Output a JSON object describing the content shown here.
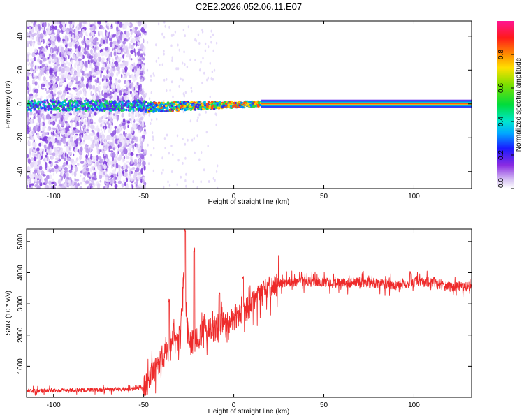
{
  "title": "C2E2.2026.052.06.11.E07",
  "colors": {
    "axis": "#000000",
    "snr_line": "#ee2a2a",
    "background": "#ffffff"
  },
  "chart_data": [
    {
      "type": "heatmap",
      "title": "C2E2.2026.052.06.11.E07",
      "xlabel": "Height of straight line (km)",
      "ylabel": "Frequency (Hz)",
      "xlim": [
        -115,
        132
      ],
      "ylim": [
        -50,
        49
      ],
      "xticks": [
        -100,
        -50,
        0,
        50,
        100
      ],
      "xtick_labels": [
        "-100",
        "-50",
        "0",
        "50",
        "100"
      ],
      "yticks": [
        -40,
        -20,
        0,
        20,
        40
      ],
      "ytick_labels": [
        "-40",
        "-20",
        "0",
        "20",
        "40"
      ],
      "colorbar": {
        "label": "Normalized spectral amplitude",
        "range": [
          0,
          1
        ],
        "ticks": [
          0.0,
          0.2,
          0.4,
          0.6,
          0.8
        ],
        "tick_labels": [
          "0.0",
          "0.2",
          "0.4",
          "0.6",
          "0.8"
        ],
        "colormap": "rainbow (white-violet-blue-cyan-green-yellow-red-magenta)"
      },
      "regions": [
        {
          "x_range": [
            -115,
            -49
          ],
          "description": "broadband scattered low-amplitude energy",
          "amplitude": 0.15
        },
        {
          "x_range": [
            -49,
            15
          ],
          "description": "narrow band near 0 Hz, slightly negative frequency near -40 km",
          "center_freq": -2,
          "amplitude": 0.5
        },
        {
          "x_range": [
            15,
            132
          ],
          "description": "strong narrow line at 0 Hz",
          "center_freq": 0,
          "amplitude": 0.95
        }
      ]
    },
    {
      "type": "line",
      "xlabel": "Height of straight line (km)",
      "ylabel": "SNR (10 * v/v)",
      "xlim": [
        -115,
        132
      ],
      "ylim": [
        0,
        5400
      ],
      "xticks": [
        -100,
        -50,
        0,
        50,
        100
      ],
      "xtick_labels": [
        "-100",
        "-50",
        "0",
        "50",
        "100"
      ],
      "yticks": [
        1000,
        2000,
        3000,
        4000,
        5000
      ],
      "ytick_labels": [
        "1000",
        "2000",
        "3000",
        "4000",
        "5000"
      ],
      "series": [
        {
          "name": "SNR",
          "color": "#ee2a2a",
          "x": [
            -115,
            -100,
            -80,
            -60,
            -50,
            -45,
            -40,
            -35,
            -33,
            -30,
            -28,
            -25,
            -20,
            -15,
            -10,
            -5,
            0,
            5,
            10,
            15,
            20,
            25,
            30,
            40,
            50,
            60,
            70,
            80,
            90,
            100,
            110,
            120,
            132
          ],
          "values": [
            200,
            220,
            240,
            260,
            330,
            700,
            1300,
            1500,
            2200,
            1400,
            4000,
            1700,
            1900,
            2200,
            2300,
            2400,
            2500,
            2700,
            3000,
            3300,
            3500,
            3650,
            3700,
            3700,
            3700,
            3650,
            3700,
            3650,
            3600,
            3700,
            3700,
            3550,
            3550
          ],
          "peaks": [
            {
              "x": -36,
              "value": 3200
            },
            {
              "x": -30,
              "value": 2300
            },
            {
              "x": -27,
              "value": 5450
            },
            {
              "x": -22,
              "value": 4800
            },
            {
              "x": -8,
              "value": 3400
            },
            {
              "x": 5,
              "value": 3900
            },
            {
              "x": 98,
              "value": 4100
            }
          ]
        }
      ]
    }
  ]
}
